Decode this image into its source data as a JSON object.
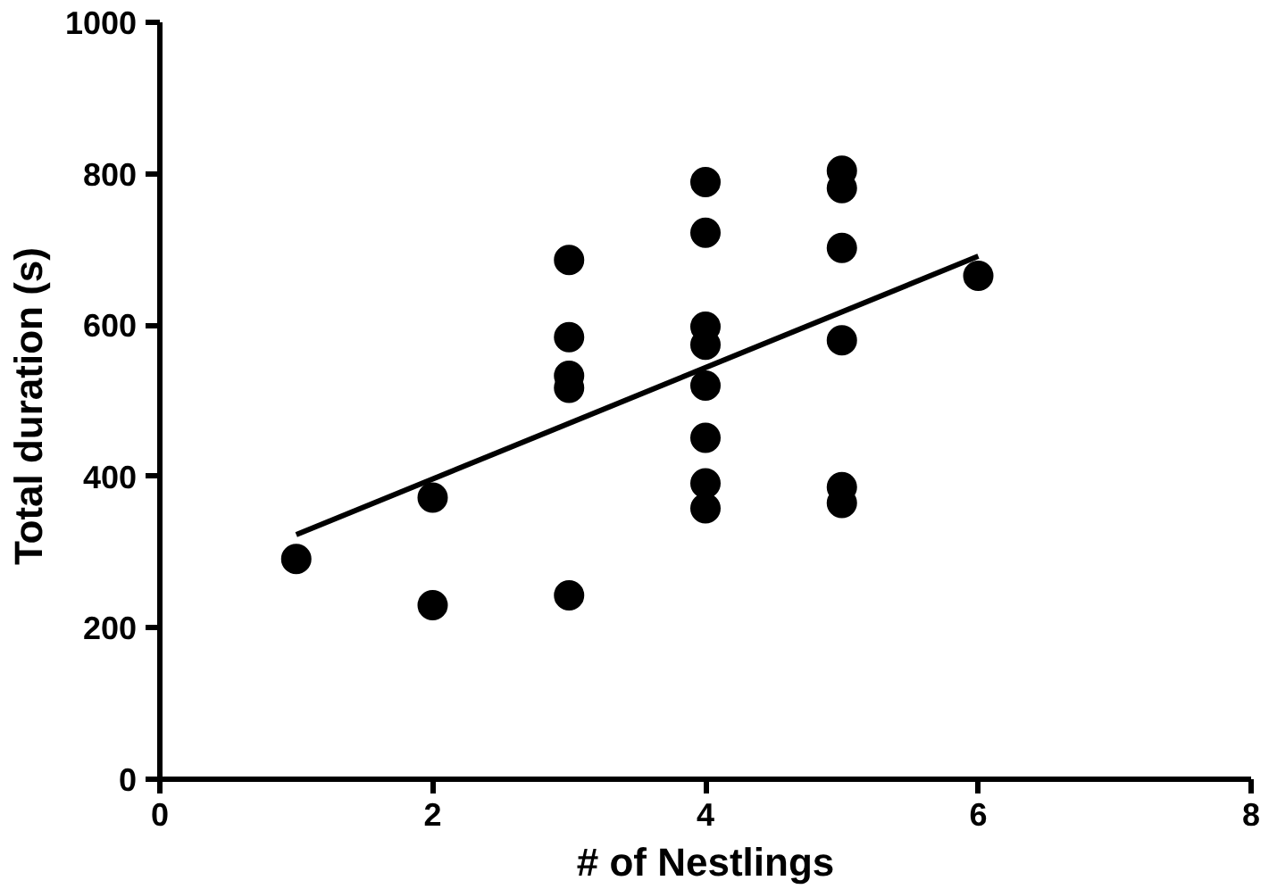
{
  "chart_data": {
    "type": "scatter",
    "xlabel": "# of Nestlings",
    "ylabel": "Total duration  (s)",
    "xlim": [
      0,
      8
    ],
    "ylim": [
      0,
      1000
    ],
    "xticks": [
      0,
      2,
      4,
      6,
      8
    ],
    "yticks": [
      0,
      200,
      400,
      600,
      800,
      1000
    ],
    "grid": false,
    "series": [
      {
        "color": "#000000",
        "marker": "circle",
        "x": [
          1,
          2,
          2,
          3,
          3,
          3,
          3,
          3,
          4,
          4,
          4,
          4,
          4,
          4,
          4,
          4,
          5,
          5,
          5,
          5,
          5,
          5,
          6
        ],
        "values": [
          291,
          372,
          230,
          686,
          584,
          533,
          517,
          243,
          789,
          722,
          598,
          574,
          520,
          451,
          391,
          358,
          804,
          781,
          702,
          580,
          386,
          365,
          665
        ]
      },
      {
        "type": "line",
        "color": "#000000",
        "line_style": "solid",
        "x": [
          1,
          6
        ],
        "values": [
          323,
          691
        ]
      }
    ]
  }
}
